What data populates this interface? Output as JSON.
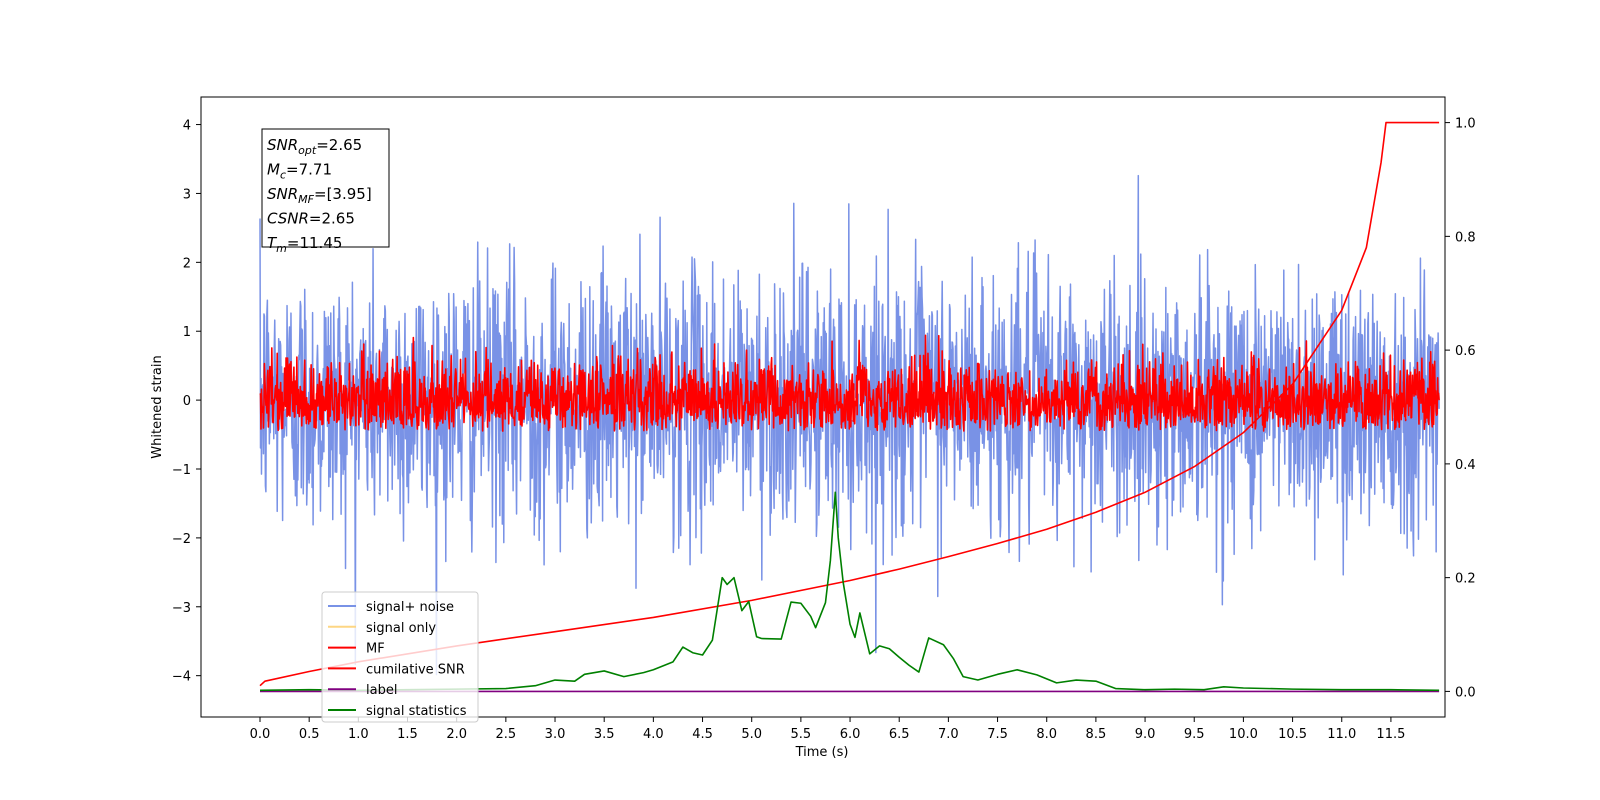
{
  "chart_data": {
    "type": "line",
    "xlabel": "Time (s)",
    "ylabel": "Whitened strain",
    "xlim": [
      -0.6,
      12.05
    ],
    "ylim": [
      -4.6,
      4.4
    ],
    "y2lim": [
      -0.045,
      1.045
    ],
    "xticks": [
      0.0,
      0.5,
      1.0,
      1.5,
      2.0,
      2.5,
      3.0,
      3.5,
      4.0,
      4.5,
      5.0,
      5.5,
      6.0,
      6.5,
      7.0,
      7.5,
      8.0,
      8.5,
      9.0,
      9.5,
      10.0,
      10.5,
      11.0,
      11.5
    ],
    "xtick_labels": [
      "0.0",
      "0.5",
      "1.0",
      "1.5",
      "2.0",
      "2.5",
      "3.0",
      "3.5",
      "4.0",
      "4.5",
      "5.0",
      "5.5",
      "6.0",
      "6.5",
      "7.0",
      "7.5",
      "8.0",
      "8.5",
      "9.0",
      "9.5",
      "10.0",
      "10.5",
      "11.0",
      "11.5"
    ],
    "yticks": [
      -4,
      -3,
      -2,
      -1,
      0,
      1,
      2,
      3,
      4
    ],
    "ytick_labels": [
      "−4",
      "−3",
      "−2",
      "−1",
      "0",
      "1",
      "2",
      "3",
      "4"
    ],
    "y2ticks": [
      0.0,
      0.2,
      0.4,
      0.6,
      0.8,
      1.0
    ],
    "y2tick_labels": [
      "0.0",
      "0.2",
      "0.4",
      "0.6",
      "0.8",
      "1.0"
    ],
    "info_box": [
      {
        "main": "SNR",
        "sub": "opt",
        "rest": "=2.65"
      },
      {
        "main": "M",
        "sub": "c",
        "rest": "=7.71"
      },
      {
        "main": "SNR",
        "sub": "MF",
        "rest": "=[3.95]"
      },
      {
        "main": "CSNR",
        "sub": "",
        "rest": "=2.65"
      },
      {
        "main": "T",
        "sub": "m",
        "rest": "=11.45"
      }
    ],
    "legend": [
      {
        "label": "signal+ noise",
        "color": "#7992e6"
      },
      {
        "label": "signal only",
        "color": "#fdd683"
      },
      {
        "label": "MF",
        "color": "#ff0000"
      },
      {
        "label": "cumilative SNR",
        "color": "#ff0000"
      },
      {
        "label": "label",
        "color": "#800080"
      },
      {
        "label": "signal statistics",
        "color": "#008000"
      }
    ],
    "legend_position": "lower-left",
    "series": [
      {
        "name": "signal+ noise",
        "axis": "left",
        "color": "#7992e6",
        "noise_band": {
          "x_start": 0.0,
          "x_end": 11.99,
          "center": 0.0,
          "spread": 0.95,
          "max": 3.9,
          "min": -4.0
        }
      },
      {
        "name": "MF",
        "axis": "left",
        "color": "#ff0000",
        "noise_band": {
          "x_start": 0.0,
          "x_end": 11.99,
          "center": 0.0,
          "spread": 0.3,
          "max": 1.0,
          "min": -0.45
        }
      },
      {
        "name": "cumilative SNR",
        "axis": "right",
        "color": "#ff0000",
        "x": [
          0.0,
          0.05,
          0.5,
          1.0,
          2.0,
          3.0,
          4.0,
          5.0,
          6.0,
          6.5,
          7.0,
          7.5,
          8.0,
          8.5,
          9.0,
          9.5,
          10.0,
          10.5,
          11.0,
          11.25,
          11.4,
          11.45,
          11.99
        ],
        "y": [
          0.01,
          0.018,
          0.035,
          0.052,
          0.08,
          0.105,
          0.13,
          0.16,
          0.195,
          0.215,
          0.237,
          0.26,
          0.285,
          0.315,
          0.35,
          0.395,
          0.455,
          0.54,
          0.67,
          0.78,
          0.93,
          1.0,
          1.0
        ]
      },
      {
        "name": "label",
        "axis": "right",
        "color": "#800080",
        "x": [
          0.0,
          11.99
        ],
        "y": [
          0.0,
          0.0
        ]
      },
      {
        "name": "signal statistics",
        "axis": "right",
        "color": "#008000",
        "x": [
          0.0,
          0.5,
          1.0,
          1.5,
          2.0,
          2.5,
          2.8,
          3.0,
          3.2,
          3.3,
          3.5,
          3.7,
          3.9,
          4.0,
          4.2,
          4.3,
          4.4,
          4.5,
          4.6,
          4.7,
          4.75,
          4.82,
          4.9,
          4.97,
          5.05,
          5.1,
          5.3,
          5.4,
          5.5,
          5.6,
          5.65,
          5.75,
          5.8,
          5.85,
          5.88,
          5.93,
          6.0,
          6.05,
          6.1,
          6.2,
          6.3,
          6.4,
          6.5,
          6.6,
          6.7,
          6.8,
          6.95,
          7.05,
          7.15,
          7.3,
          7.5,
          7.7,
          7.9,
          8.1,
          8.3,
          8.5,
          8.7,
          9.0,
          9.3,
          9.6,
          9.8,
          10.0,
          10.5,
          11.0,
          11.5,
          11.99
        ],
        "y": [
          0.002,
          0.003,
          0.002,
          0.003,
          0.004,
          0.005,
          0.01,
          0.02,
          0.018,
          0.03,
          0.036,
          0.026,
          0.033,
          0.038,
          0.052,
          0.078,
          0.068,
          0.064,
          0.09,
          0.2,
          0.188,
          0.2,
          0.142,
          0.158,
          0.096,
          0.093,
          0.092,
          0.157,
          0.155,
          0.132,
          0.112,
          0.156,
          0.23,
          0.35,
          0.27,
          0.192,
          0.118,
          0.095,
          0.138,
          0.066,
          0.08,
          0.075,
          0.06,
          0.046,
          0.034,
          0.094,
          0.082,
          0.058,
          0.026,
          0.02,
          0.03,
          0.038,
          0.029,
          0.015,
          0.02,
          0.018,
          0.005,
          0.003,
          0.004,
          0.003,
          0.008,
          0.006,
          0.004,
          0.003,
          0.003,
          0.002
        ]
      }
    ]
  }
}
